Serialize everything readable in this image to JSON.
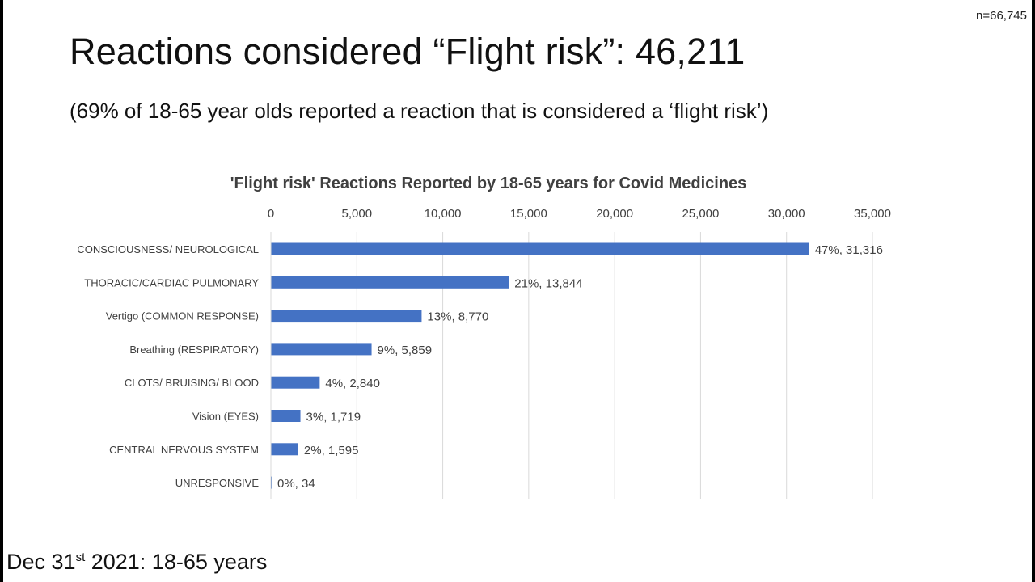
{
  "n_label": "n=66,745",
  "title": "Reactions considered “Flight risk”:  46,211",
  "subtitle": "(69% of 18-65 year olds reported a reaction that is considered a ‘flight risk’)",
  "footer": {
    "prefix": "Dec 31",
    "sup": "st",
    "suffix": " 2021: 18-65 years"
  },
  "chart_data": {
    "type": "bar",
    "orientation": "horizontal",
    "title": "'Flight risk' Reactions Reported by 18-65 years for Covid Medicines",
    "xlabel": "",
    "ylabel": "",
    "xlim": [
      0,
      35000
    ],
    "x_ticks": [
      "0",
      "5,000",
      "10,000",
      "15,000",
      "20,000",
      "25,000",
      "30,000",
      "35,000"
    ],
    "x_axis_position": "top",
    "grid": true,
    "bar_color": "#4472C4",
    "categories": [
      "CONSCIOUSNESS/ NEUROLOGICAL",
      "THORACIC/CARDIAC PULMONARY",
      "Vertigo (COMMON RESPONSE)",
      "Breathing (RESPIRATORY)",
      "CLOTS/ BRUISING/ BLOOD",
      "Vision (EYES)",
      "CENTRAL NERVOUS SYSTEM",
      "UNRESPONSIVE"
    ],
    "values": [
      31316,
      13844,
      8770,
      5859,
      2840,
      1719,
      1595,
      34
    ],
    "data_labels": [
      "47%, 31,316",
      "21%, 13,844",
      "13%, 8,770",
      "9%, 5,859",
      "4%, 2,840",
      "3%, 1,719",
      "2%, 1,595",
      "0%, 34"
    ]
  }
}
